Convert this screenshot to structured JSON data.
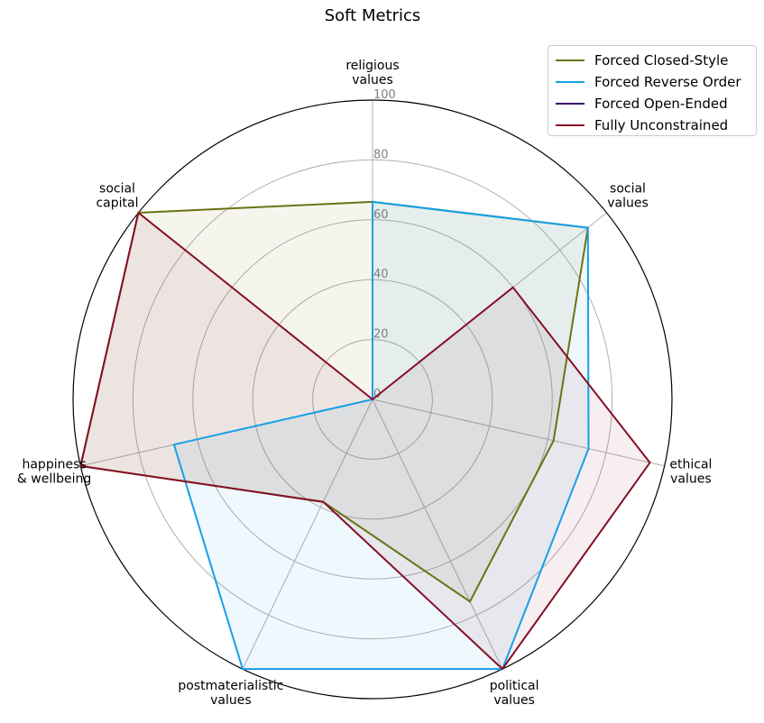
{
  "chart_data": {
    "type": "radar",
    "title": "Soft Metrics",
    "axes": [
      [
        "religious",
        "values"
      ],
      [
        "social",
        "values"
      ],
      [
        "ethical",
        "values"
      ],
      [
        "political",
        "values"
      ],
      [
        "postmaterialistic",
        "values"
      ],
      [
        "happiness",
        "& wellbeing"
      ],
      [
        "social",
        "capital"
      ]
    ],
    "rlim": [
      0,
      100
    ],
    "r_ticks": [
      "0",
      "20",
      "40",
      "60",
      "80",
      "100"
    ],
    "grid": true,
    "legend_position": "top-right",
    "series": [
      {
        "name": "Forced Closed-Style",
        "color": "#6b7314",
        "values": [
          66,
          92,
          62,
          75,
          38,
          100,
          100
        ]
      },
      {
        "name": "Forced Reverse Order",
        "color": "#16a0e8",
        "values": [
          66,
          92,
          74,
          100,
          100,
          68,
          0
        ]
      },
      {
        "name": "Forced Open-Ended",
        "color": "#3d0a6b",
        "values": [
          0,
          0,
          0,
          0,
          0,
          0,
          0
        ]
      },
      {
        "name": "Fully Unconstrained",
        "color": "#860f25",
        "values": [
          0,
          60,
          95,
          100,
          38,
          100,
          100
        ]
      }
    ]
  }
}
